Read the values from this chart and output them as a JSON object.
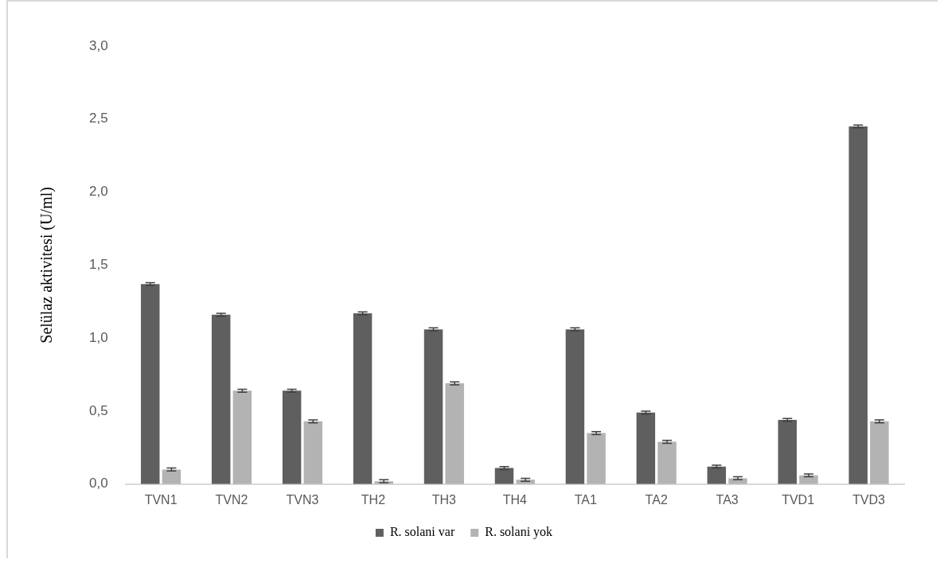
{
  "chart_data": {
    "type": "bar",
    "ylabel": "Selülaz aktivitesi (U/ml)",
    "categories": [
      "TVN1",
      "TVN2",
      "TVN3",
      "TH2",
      "TH3",
      "TH4",
      "TA1",
      "TA2",
      "TA3",
      "TVD1",
      "TVD3"
    ],
    "series": [
      {
        "name": "R. solani var",
        "color": "#5f5f5f",
        "values": [
          1.37,
          1.16,
          0.64,
          1.17,
          1.06,
          0.11,
          1.06,
          0.49,
          0.12,
          0.44,
          2.45
        ],
        "errors": [
          0.01,
          0.01,
          0.01,
          0.01,
          0.01,
          0.01,
          0.01,
          0.01,
          0.01,
          0.01,
          0.01
        ]
      },
      {
        "name": "R. solani yok",
        "color": "#b3b3b3",
        "values": [
          0.1,
          0.64,
          0.43,
          0.02,
          0.69,
          0.03,
          0.35,
          0.29,
          0.04,
          0.06,
          0.43
        ],
        "errors": [
          0.01,
          0.01,
          0.01,
          0.01,
          0.01,
          0.01,
          0.01,
          0.01,
          0.01,
          0.01,
          0.01
        ]
      }
    ],
    "ylim": [
      0,
      3
    ],
    "yticks": [
      {
        "value": 0,
        "label": "0,0"
      },
      {
        "value": 0.5,
        "label": "0,5"
      },
      {
        "value": 1,
        "label": "1,0"
      },
      {
        "value": 1.5,
        "label": "1,5"
      },
      {
        "value": 2,
        "label": "2,0"
      },
      {
        "value": 2.5,
        "label": "2,5"
      },
      {
        "value": 3,
        "label": "3,0"
      }
    ],
    "grid": false,
    "legend": "bottom"
  }
}
